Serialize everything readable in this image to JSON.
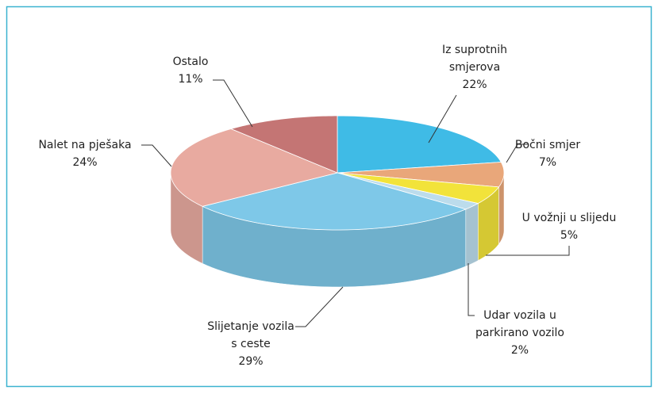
{
  "chart_data": {
    "type": "pie3d",
    "categories": [
      "Iz suprotnih smjerova",
      "Bočni smjer",
      "U vožnji u slijedu",
      "Udar vozila u parkirano vozilo",
      "Slijetanje vozila s ceste",
      "Nalet na pješaka",
      "Ostalo"
    ],
    "values": [
      22,
      7,
      5,
      2,
      29,
      24,
      11
    ],
    "value_labels": [
      "22%",
      "7%",
      "5%",
      "2%",
      "29%",
      "24%",
      "11%"
    ],
    "colors": [
      "#3fbbe6",
      "#e9a77a",
      "#f2e33a",
      "#bcdcec",
      "#7ec8e8",
      "#e8aaa0",
      "#c47574"
    ]
  }
}
